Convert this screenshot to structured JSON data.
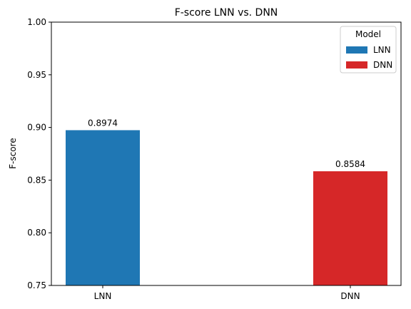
{
  "chart_data": {
    "type": "bar",
    "title": "F-score LNN vs. DNN",
    "xlabel": "",
    "ylabel": "F-score",
    "categories": [
      "LNN",
      "DNN"
    ],
    "values": [
      0.8974,
      0.8584
    ],
    "value_labels": [
      "0.8974",
      "0.8584"
    ],
    "colors": [
      "#1f77b4",
      "#d62728"
    ],
    "ylim": [
      0.75,
      1.0
    ],
    "yticks": [
      0.75,
      0.8,
      0.85,
      0.9,
      0.95,
      1.0
    ],
    "ytick_labels": [
      "0.75",
      "0.80",
      "0.85",
      "0.90",
      "0.95",
      "1.00"
    ],
    "grid": false,
    "legend": {
      "title": "Model",
      "placement": "top-right",
      "entries": [
        {
          "label": "LNN",
          "color": "#1f77b4"
        },
        {
          "label": "DNN",
          "color": "#d62728"
        }
      ]
    }
  }
}
